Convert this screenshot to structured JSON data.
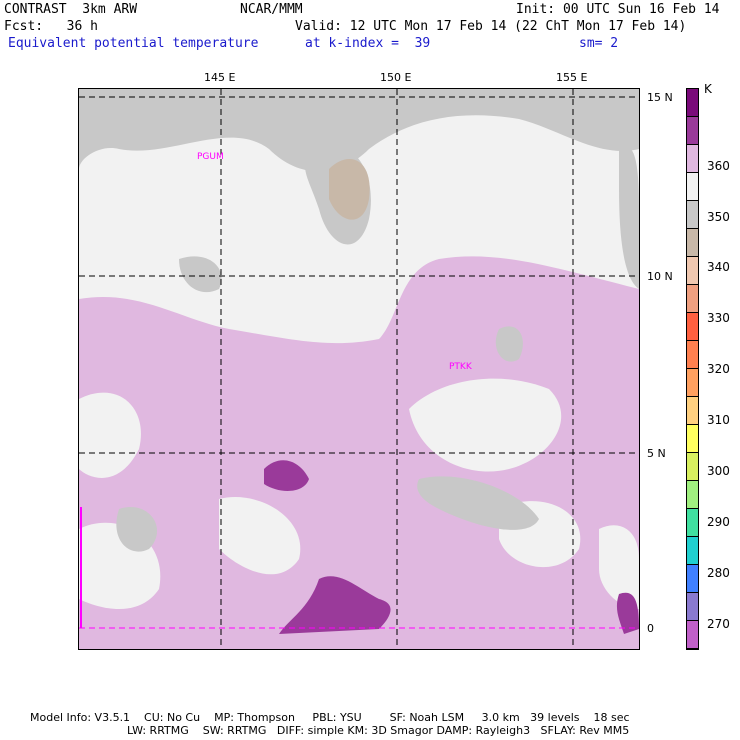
{
  "header": {
    "model": "CONTRAST  3km ARW",
    "center": "NCAR/MMM",
    "init": "Init: 00 UTC Sun 16 Feb 14",
    "fcst": "Fcst:   36 h",
    "valid": "Valid: 12 UTC Mon 17 Feb 14 (22 ChT Mon 17 Feb 14)",
    "field": "Equivalent potential temperature",
    "level": "at k-index =  39",
    "smooth": "sm= 2"
  },
  "axes": {
    "lon_labels": [
      "145 E",
      "150 E",
      "155 E"
    ],
    "lat_labels": [
      "15 N",
      "10 N",
      "5 N",
      "0"
    ]
  },
  "colorbar": {
    "unit": "K",
    "labels": [
      "360",
      "350",
      "340",
      "330",
      "320",
      "310",
      "300",
      "290",
      "280",
      "270"
    ],
    "colors": [
      "#7a0a7a",
      "#9a3a9a",
      "#e0b8e0",
      "#f2f2f2",
      "#c8c8c8",
      "#c8b8a8",
      "#f0c8b0",
      "#f0a080",
      "#ff6040",
      "#ff8050",
      "#ffa060",
      "#ffd080",
      "#ffff60",
      "#d8f060",
      "#a0f080",
      "#40e0a0",
      "#20d0d0",
      "#4080ff",
      "#8a7ad0",
      "#c060c8"
    ]
  },
  "stations": {
    "pgum": "PGUM",
    "ptkk": "PTKK"
  },
  "footer": {
    "line1": "Model Info: V3.5.1    CU: No Cu    MP: Thompson     PBL: YSU        SF: Noah LSM     3.0 km   39 levels    18 sec",
    "line2": "LW: RRTMG    SW: RRTMG   DIFF: simple KM: 3D Smagor DAMP: Rayleigh3   SFLAY: Rev MM5"
  }
}
